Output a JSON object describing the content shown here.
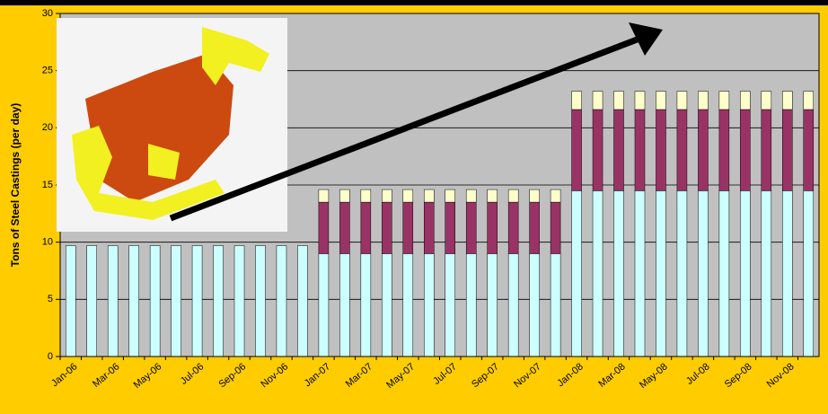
{
  "chart_data": {
    "type": "stacked-bar",
    "y_label": "Tons of Steel Castings (per day)",
    "categories": [
      "Jan-06",
      null,
      "Mar-06",
      null,
      "May-06",
      null,
      "Jul-06",
      null,
      "Sep-06",
      null,
      "Nov-06",
      null,
      "Jan-07",
      null,
      "Mar-07",
      null,
      "May-07",
      null,
      "Jul-07",
      null,
      "Sep-07",
      null,
      "Nov-07",
      null,
      "Jan-08",
      null,
      "Mar-08",
      null,
      "May-08",
      null,
      "Jul-08",
      null,
      "Sep-08",
      null,
      "Nov-08",
      null
    ],
    "series": [
      {
        "color": "#ccffff",
        "values": [
          9.7,
          9.7,
          9.7,
          9.7,
          9.7,
          9.7,
          9.7,
          9.7,
          9.7,
          9.7,
          9.7,
          9.7,
          9.0,
          9.0,
          9.0,
          9.0,
          9.0,
          9.0,
          9.0,
          9.0,
          9.0,
          9.0,
          9.0,
          9.0,
          14.5,
          14.5,
          14.5,
          14.5,
          14.5,
          14.5,
          14.5,
          14.5,
          14.5,
          14.5,
          14.5,
          14.5
        ]
      },
      {
        "color": "#993366",
        "values": [
          null,
          null,
          null,
          null,
          null,
          null,
          null,
          null,
          null,
          null,
          null,
          null,
          4.5,
          4.5,
          4.5,
          4.5,
          4.5,
          4.5,
          4.5,
          4.5,
          4.5,
          4.5,
          4.5,
          4.5,
          7.1,
          7.1,
          7.1,
          7.1,
          7.1,
          7.1,
          7.1,
          7.1,
          7.1,
          7.1,
          7.1,
          7.1
        ]
      },
      {
        "color": "#ffffcc",
        "values": [
          null,
          null,
          null,
          null,
          null,
          null,
          null,
          null,
          null,
          null,
          null,
          null,
          1.1,
          1.1,
          1.1,
          1.1,
          1.1,
          1.1,
          1.1,
          1.1,
          1.1,
          1.1,
          1.1,
          1.1,
          1.6,
          1.6,
          1.6,
          1.6,
          1.6,
          1.6,
          1.6,
          1.6,
          1.6,
          1.6,
          1.6,
          1.6
        ]
      }
    ],
    "ylim": [
      0,
      30
    ],
    "yticks": [
      0,
      5,
      10,
      15,
      20,
      25,
      30
    ],
    "grid": true,
    "plot_color": "#c0c0c0"
  }
}
